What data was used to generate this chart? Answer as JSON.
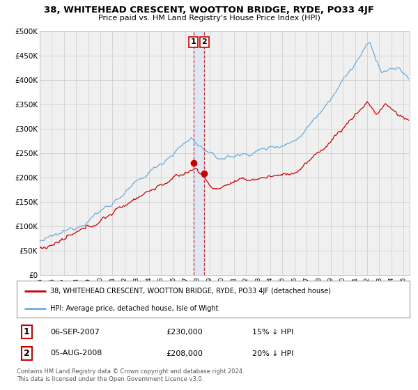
{
  "title": "38, WHITEHEAD CRESCENT, WOOTTON BRIDGE, RYDE, PO33 4JF",
  "subtitle": "Price paid vs. HM Land Registry's House Price Index (HPI)",
  "hpi_color": "#6dacd8",
  "price_color": "#cc0000",
  "marker_color": "#cc0000",
  "bg_color": "#ffffff",
  "plot_bg_color": "#f0f0f0",
  "grid_color": "#cccccc",
  "vband_color": "#dce8f5",
  "vline_color": "#cc0000",
  "ylim": [
    0,
    500000
  ],
  "yticks": [
    0,
    50000,
    100000,
    150000,
    200000,
    250000,
    300000,
    350000,
    400000,
    450000,
    500000
  ],
  "ytick_labels": [
    "£0",
    "£50K",
    "£100K",
    "£150K",
    "£200K",
    "£250K",
    "£300K",
    "£350K",
    "£400K",
    "£450K",
    "£500K"
  ],
  "transaction1": {
    "price": 230000,
    "label": "06-SEP-2007",
    "pct": "15%",
    "marker_x": 2007.67
  },
  "transaction2": {
    "price": 208000,
    "label": "05-AUG-2008",
    "pct": "20%",
    "marker_x": 2008.58
  },
  "legend_property": "38, WHITEHEAD CRESCENT, WOOTTON BRIDGE, RYDE, PO33 4JF (detached house)",
  "legend_hpi": "HPI: Average price, detached house, Isle of Wight",
  "footnote": "Contains HM Land Registry data © Crown copyright and database right 2024.\nThis data is licensed under the Open Government Licence v3.0.",
  "xmin": 1995.0,
  "xmax": 2025.5
}
